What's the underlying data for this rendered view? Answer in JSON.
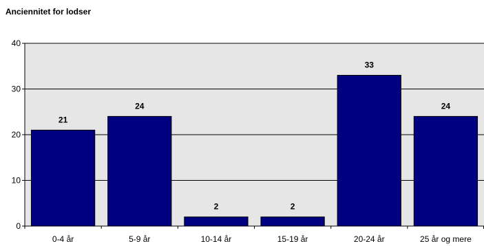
{
  "chart_data": {
    "type": "bar",
    "title": "Anciennitet for lodser",
    "xlabel": "",
    "ylabel": "",
    "categories": [
      "0-4 år",
      "5-9 år",
      "10-14 år",
      "15-19 år",
      "20-24 år",
      "25 år og mere"
    ],
    "values": [
      21,
      24,
      2,
      2,
      33,
      24
    ],
    "ylim": [
      0,
      40
    ],
    "yticks": [
      0,
      10,
      20,
      30,
      40
    ],
    "grid": true,
    "legend": "none",
    "data_labels": true,
    "colors": {
      "bar": "#000080",
      "plot_bg": "#e6e6e6",
      "grid": "#000000",
      "text": "#000000"
    }
  }
}
